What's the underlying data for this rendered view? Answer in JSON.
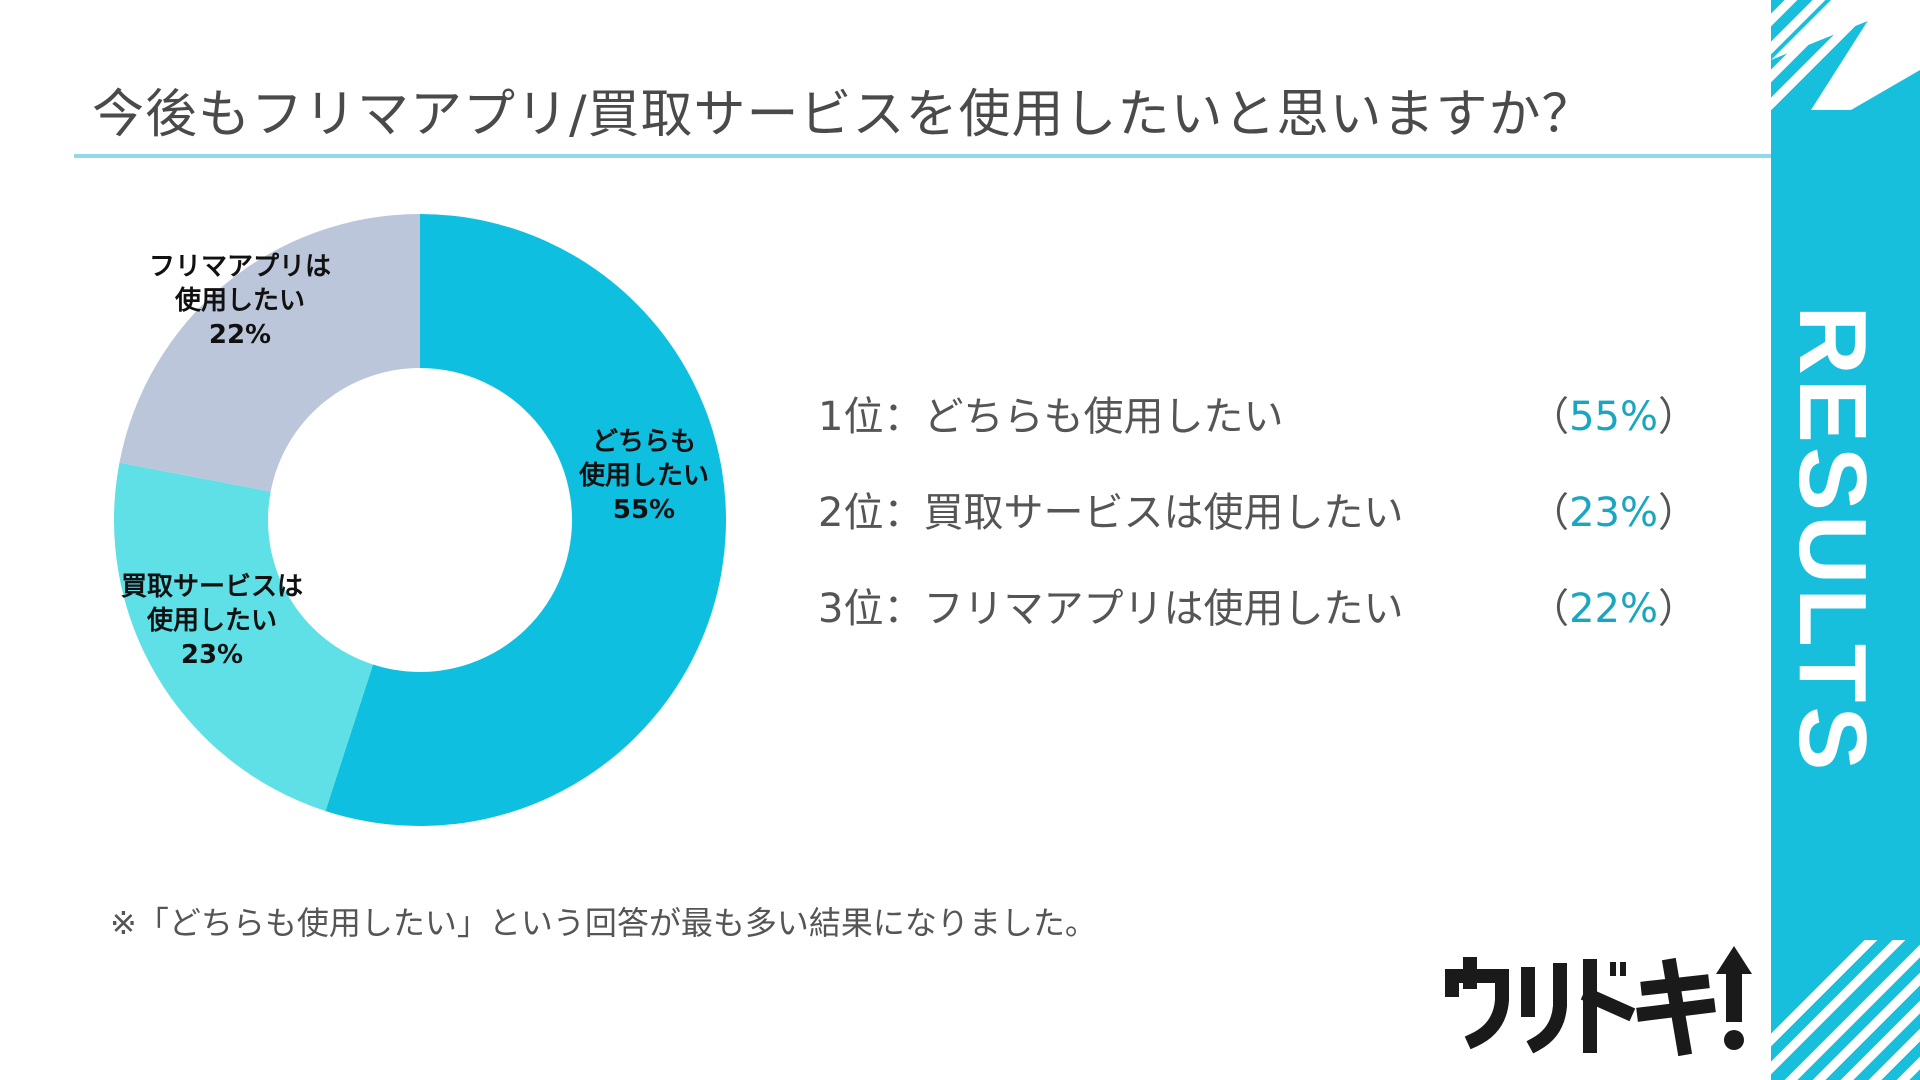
{
  "title": "今後もフリマアプリ/買取サービスを使用したいと思いますか？",
  "side_band": {
    "label": "RESULTS",
    "color": "#17bfdd"
  },
  "chart_data": {
    "type": "pie",
    "donut": true,
    "slices": [
      {
        "label_lines": [
          "どちらも",
          "使用したい"
        ],
        "value": 55,
        "value_label": "55%",
        "color": "#0ebfdf"
      },
      {
        "label_lines": [
          "買取サービスは",
          "使用したい"
        ],
        "value": 23,
        "value_label": "23%",
        "color": "#5ee0e6"
      },
      {
        "label_lines": [
          "フリマアプリは",
          "使用したい"
        ],
        "value": 22,
        "value_label": "22%",
        "color": "#bcc6da"
      }
    ]
  },
  "ranking": [
    {
      "text": "1位：どちらも使用したい",
      "open": "（",
      "pct": "55%",
      "close": "）"
    },
    {
      "text": "2位：買取サービスは使用したい",
      "open": "（",
      "pct": "23%",
      "close": "）"
    },
    {
      "text": "3位：フリマアプリは使用したい",
      "open": "（",
      "pct": "22%",
      "close": "）"
    }
  ],
  "footnote": "※「どちらも使用したい」という回答が最も多い結果になりました。",
  "logo": {
    "text": "ウリドキ"
  }
}
